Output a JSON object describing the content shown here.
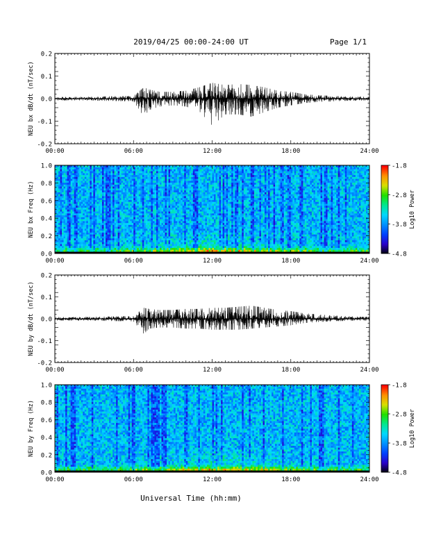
{
  "header": {
    "title": "2019/04/25  00:00-24:00 UT",
    "page": "Page 1/1"
  },
  "footer": {
    "xlabel": "Universal Time (hh:mm)"
  },
  "colors": {
    "trace": "#000000",
    "colormap": [
      "#000000",
      "#2b00c8",
      "#0040ff",
      "#0090ff",
      "#00d8ff",
      "#00e890",
      "#20e000",
      "#d8e000",
      "#ff9000",
      "#ff0000"
    ]
  },
  "chart_data": [
    {
      "type": "line",
      "ylabel": "NEU bx dB/dt (nT/sec)",
      "xlim": [
        "00:00",
        "24:00"
      ],
      "ylim": [
        -0.2,
        0.2
      ],
      "xticks": [
        "00:00",
        "06:00",
        "12:00",
        "18:00",
        "24:00"
      ],
      "yticks": [
        "-0.2",
        "-0.1",
        "0.0",
        "0.1",
        "0.2"
      ],
      "envelope": {
        "hours": [
          0,
          2,
          4,
          6,
          6.8,
          7.2,
          8,
          9,
          10,
          11,
          12,
          13,
          14,
          15,
          16,
          17,
          18,
          19,
          20,
          22,
          24
        ],
        "max": [
          0.008,
          0.008,
          0.01,
          0.012,
          0.05,
          0.04,
          0.03,
          0.03,
          0.035,
          0.05,
          0.07,
          0.06,
          0.065,
          0.06,
          0.05,
          0.035,
          0.03,
          0.02,
          0.015,
          0.01,
          0.008
        ],
        "min": [
          -0.008,
          -0.008,
          -0.01,
          -0.012,
          -0.08,
          -0.05,
          -0.035,
          -0.03,
          -0.035,
          -0.055,
          -0.12,
          -0.07,
          -0.07,
          -0.08,
          -0.06,
          -0.04,
          -0.03,
          -0.02,
          -0.015,
          -0.01,
          -0.008
        ]
      }
    },
    {
      "type": "heatmap",
      "ylabel": "NEU bx Freq (Hz)",
      "xlim": [
        "00:00",
        "24:00"
      ],
      "ylim": [
        0.0,
        1.0
      ],
      "xticks": [
        "00:00",
        "06:00",
        "12:00",
        "18:00",
        "24:00"
      ],
      "yticks": [
        "0.0",
        "0.2",
        "0.4",
        "0.6",
        "0.8",
        "1.0"
      ],
      "colorbar": {
        "label": "Log10 Power",
        "range": [
          -4.8,
          -1.8
        ],
        "ticks": [
          "-1.8",
          "-2.8",
          "-3.8",
          "-4.8"
        ]
      }
    },
    {
      "type": "line",
      "ylabel": "NEU by dB/dt (nT/sec)",
      "xlim": [
        "00:00",
        "24:00"
      ],
      "ylim": [
        -0.2,
        0.2
      ],
      "xticks": [
        "00:00",
        "06:00",
        "12:00",
        "18:00",
        "24:00"
      ],
      "yticks": [
        "-0.2",
        "-0.1",
        "0.0",
        "0.1",
        "0.2"
      ],
      "envelope": {
        "hours": [
          0,
          2,
          4,
          6,
          6.8,
          7.2,
          8,
          9,
          10,
          11,
          12,
          13,
          14,
          15,
          16,
          17,
          18,
          19,
          20,
          22,
          24
        ],
        "max": [
          0.008,
          0.008,
          0.01,
          0.012,
          0.05,
          0.045,
          0.04,
          0.04,
          0.045,
          0.045,
          0.05,
          0.05,
          0.055,
          0.06,
          0.05,
          0.04,
          0.035,
          0.025,
          0.02,
          0.012,
          0.008
        ],
        "min": [
          -0.008,
          -0.008,
          -0.01,
          -0.012,
          -0.07,
          -0.045,
          -0.04,
          -0.04,
          -0.045,
          -0.045,
          -0.05,
          -0.05,
          -0.05,
          -0.045,
          -0.04,
          -0.035,
          -0.03,
          -0.02,
          -0.015,
          -0.01,
          -0.008
        ]
      }
    },
    {
      "type": "heatmap",
      "ylabel": "NEU by Freq (Hz)",
      "xlim": [
        "00:00",
        "24:00"
      ],
      "ylim": [
        0.0,
        1.0
      ],
      "xticks": [
        "00:00",
        "06:00",
        "12:00",
        "18:00",
        "24:00"
      ],
      "yticks": [
        "0.0",
        "0.2",
        "0.4",
        "0.6",
        "0.8",
        "1.0"
      ],
      "colorbar": {
        "label": "Log10 Power",
        "range": [
          -4.8,
          -1.8
        ],
        "ticks": [
          "-1.8",
          "-2.8",
          "-3.8",
          "-4.8"
        ]
      }
    }
  ]
}
